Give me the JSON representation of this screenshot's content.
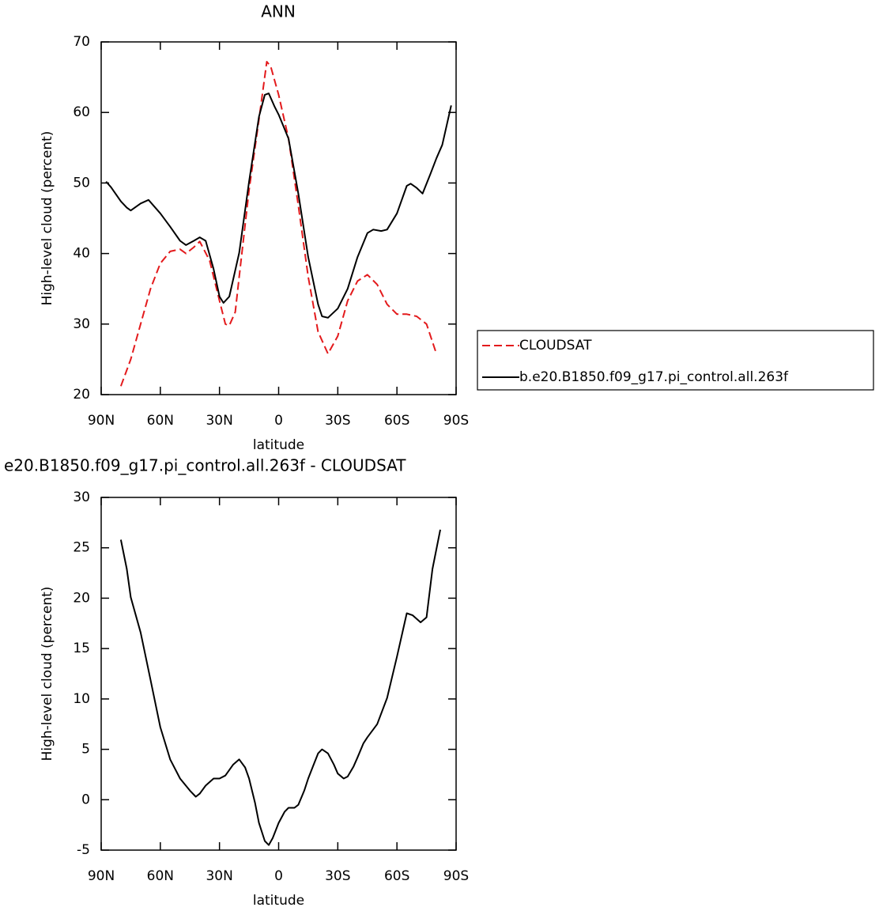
{
  "chart_data": [
    {
      "type": "line",
      "title": "ANN",
      "xlabel": "latitude",
      "ylabel": "High-level cloud (percent)",
      "xlim": [
        90,
        -90
      ],
      "ylim": [
        20,
        70
      ],
      "xticks": [
        {
          "value": 90,
          "label": "90N"
        },
        {
          "value": 60,
          "label": "60N"
        },
        {
          "value": 30,
          "label": "30N"
        },
        0,
        {
          "value": -30,
          "label": "30S"
        },
        {
          "value": -60,
          "label": "60S"
        },
        {
          "value": -90,
          "label": "90S"
        }
      ],
      "yticks": [
        20,
        30,
        40,
        50,
        60,
        70
      ],
      "legend": "right",
      "series": [
        {
          "name": "CLOUDSAT",
          "color": "#e31a1c",
          "dash": true,
          "x": [
            80,
            75,
            70,
            65,
            60,
            55,
            50,
            47,
            43,
            40,
            35,
            30,
            27,
            25,
            22,
            20,
            15,
            10,
            6,
            4,
            0,
            -5,
            -10,
            -15,
            -20,
            -25,
            -30,
            -35,
            -40,
            -45,
            -50,
            -55,
            -60,
            -65,
            -70,
            -75,
            -80
          ],
          "values": [
            21.2,
            25,
            30,
            35,
            38.6,
            40.3,
            40.6,
            40,
            40.9,
            41.7,
            39,
            33.3,
            30,
            29.8,
            31.7,
            36.7,
            49,
            59,
            67.2,
            66.5,
            62.5,
            56.3,
            46.8,
            36.7,
            28.9,
            25.8,
            28.3,
            33.3,
            36.1,
            37,
            35.6,
            32.8,
            31.4,
            31.4,
            31.1,
            30,
            25.8
          ]
        },
        {
          "name": "b.e20.B1850.f09_g17.pi_control.all.263f",
          "color": "#000000",
          "dash": false,
          "x": [
            87.5,
            85,
            80,
            77,
            75,
            70,
            66,
            60,
            55,
            50,
            47,
            43,
            40,
            37,
            33,
            30,
            28,
            25,
            20,
            15,
            10,
            7,
            5,
            2,
            0,
            -5,
            -10,
            -15,
            -20,
            -22,
            -25,
            -30,
            -35,
            -40,
            -45,
            -48,
            -52,
            -55,
            -60,
            -65,
            -67,
            -70,
            -73,
            -77,
            -80,
            -83,
            -87.5
          ],
          "values": [
            50.2,
            49.4,
            47.4,
            46.5,
            46.1,
            47.1,
            47.6,
            45.7,
            43.8,
            41.8,
            41.2,
            41.8,
            42.3,
            41.8,
            37.8,
            33.9,
            33,
            33.9,
            40.1,
            50.2,
            59.4,
            62.5,
            62.7,
            60.8,
            59.7,
            56.3,
            48.5,
            39.5,
            32.8,
            31.1,
            30.9,
            32.2,
            35,
            39.5,
            42.9,
            43.4,
            43.2,
            43.4,
            45.7,
            49.6,
            49.9,
            49.3,
            48.5,
            51.3,
            53.5,
            55.4,
            61
          ]
        }
      ]
    },
    {
      "type": "line",
      "title": "e20.B1850.f09_g17.pi_control.all.263f  -  CLOUDSAT",
      "xlabel": "latitude",
      "ylabel": "High-level cloud (percent)",
      "xlim": [
        90,
        -90
      ],
      "ylim": [
        -5,
        30
      ],
      "xticks": [
        {
          "value": 90,
          "label": "90N"
        },
        {
          "value": 60,
          "label": "60N"
        },
        {
          "value": 30,
          "label": "30N"
        },
        0,
        {
          "value": -30,
          "label": "30S"
        },
        {
          "value": -60,
          "label": "60S"
        },
        {
          "value": -90,
          "label": "90S"
        }
      ],
      "yticks": [
        -5,
        0,
        5,
        10,
        15,
        20,
        25,
        30
      ],
      "series": [
        {
          "color": "#000000",
          "dash": false,
          "x": [
            80,
            77,
            75,
            70,
            65,
            60,
            55,
            50,
            45,
            42,
            40,
            37,
            33,
            30,
            27,
            23,
            20,
            17,
            15,
            12,
            10,
            7,
            5,
            3,
            0,
            -3,
            -5,
            -8,
            -10,
            -13,
            -15,
            -18,
            -20,
            -22,
            -25,
            -28,
            -30,
            -33,
            -35,
            -38,
            -40,
            -43,
            -45,
            -50,
            -55,
            -60,
            -65,
            -68,
            -72,
            -75,
            -78,
            -82
          ],
          "values": [
            25.8,
            22.9,
            20.1,
            16.6,
            11.9,
            7.2,
            4,
            2.1,
            0.9,
            0.3,
            0.6,
            1.4,
            2.1,
            2.1,
            2.4,
            3.5,
            4,
            3.2,
            2.1,
            -0.3,
            -2.3,
            -4.1,
            -4.5,
            -3.8,
            -2.3,
            -1.2,
            -0.8,
            -0.8,
            -0.5,
            0.9,
            2.1,
            3.6,
            4.6,
            5,
            4.6,
            3.5,
            2.6,
            2.1,
            2.3,
            3.3,
            4.2,
            5.6,
            6.2,
            7.5,
            10.1,
            14.2,
            18.5,
            18.3,
            17.6,
            18.1,
            22.9,
            26.8
          ]
        }
      ]
    }
  ]
}
